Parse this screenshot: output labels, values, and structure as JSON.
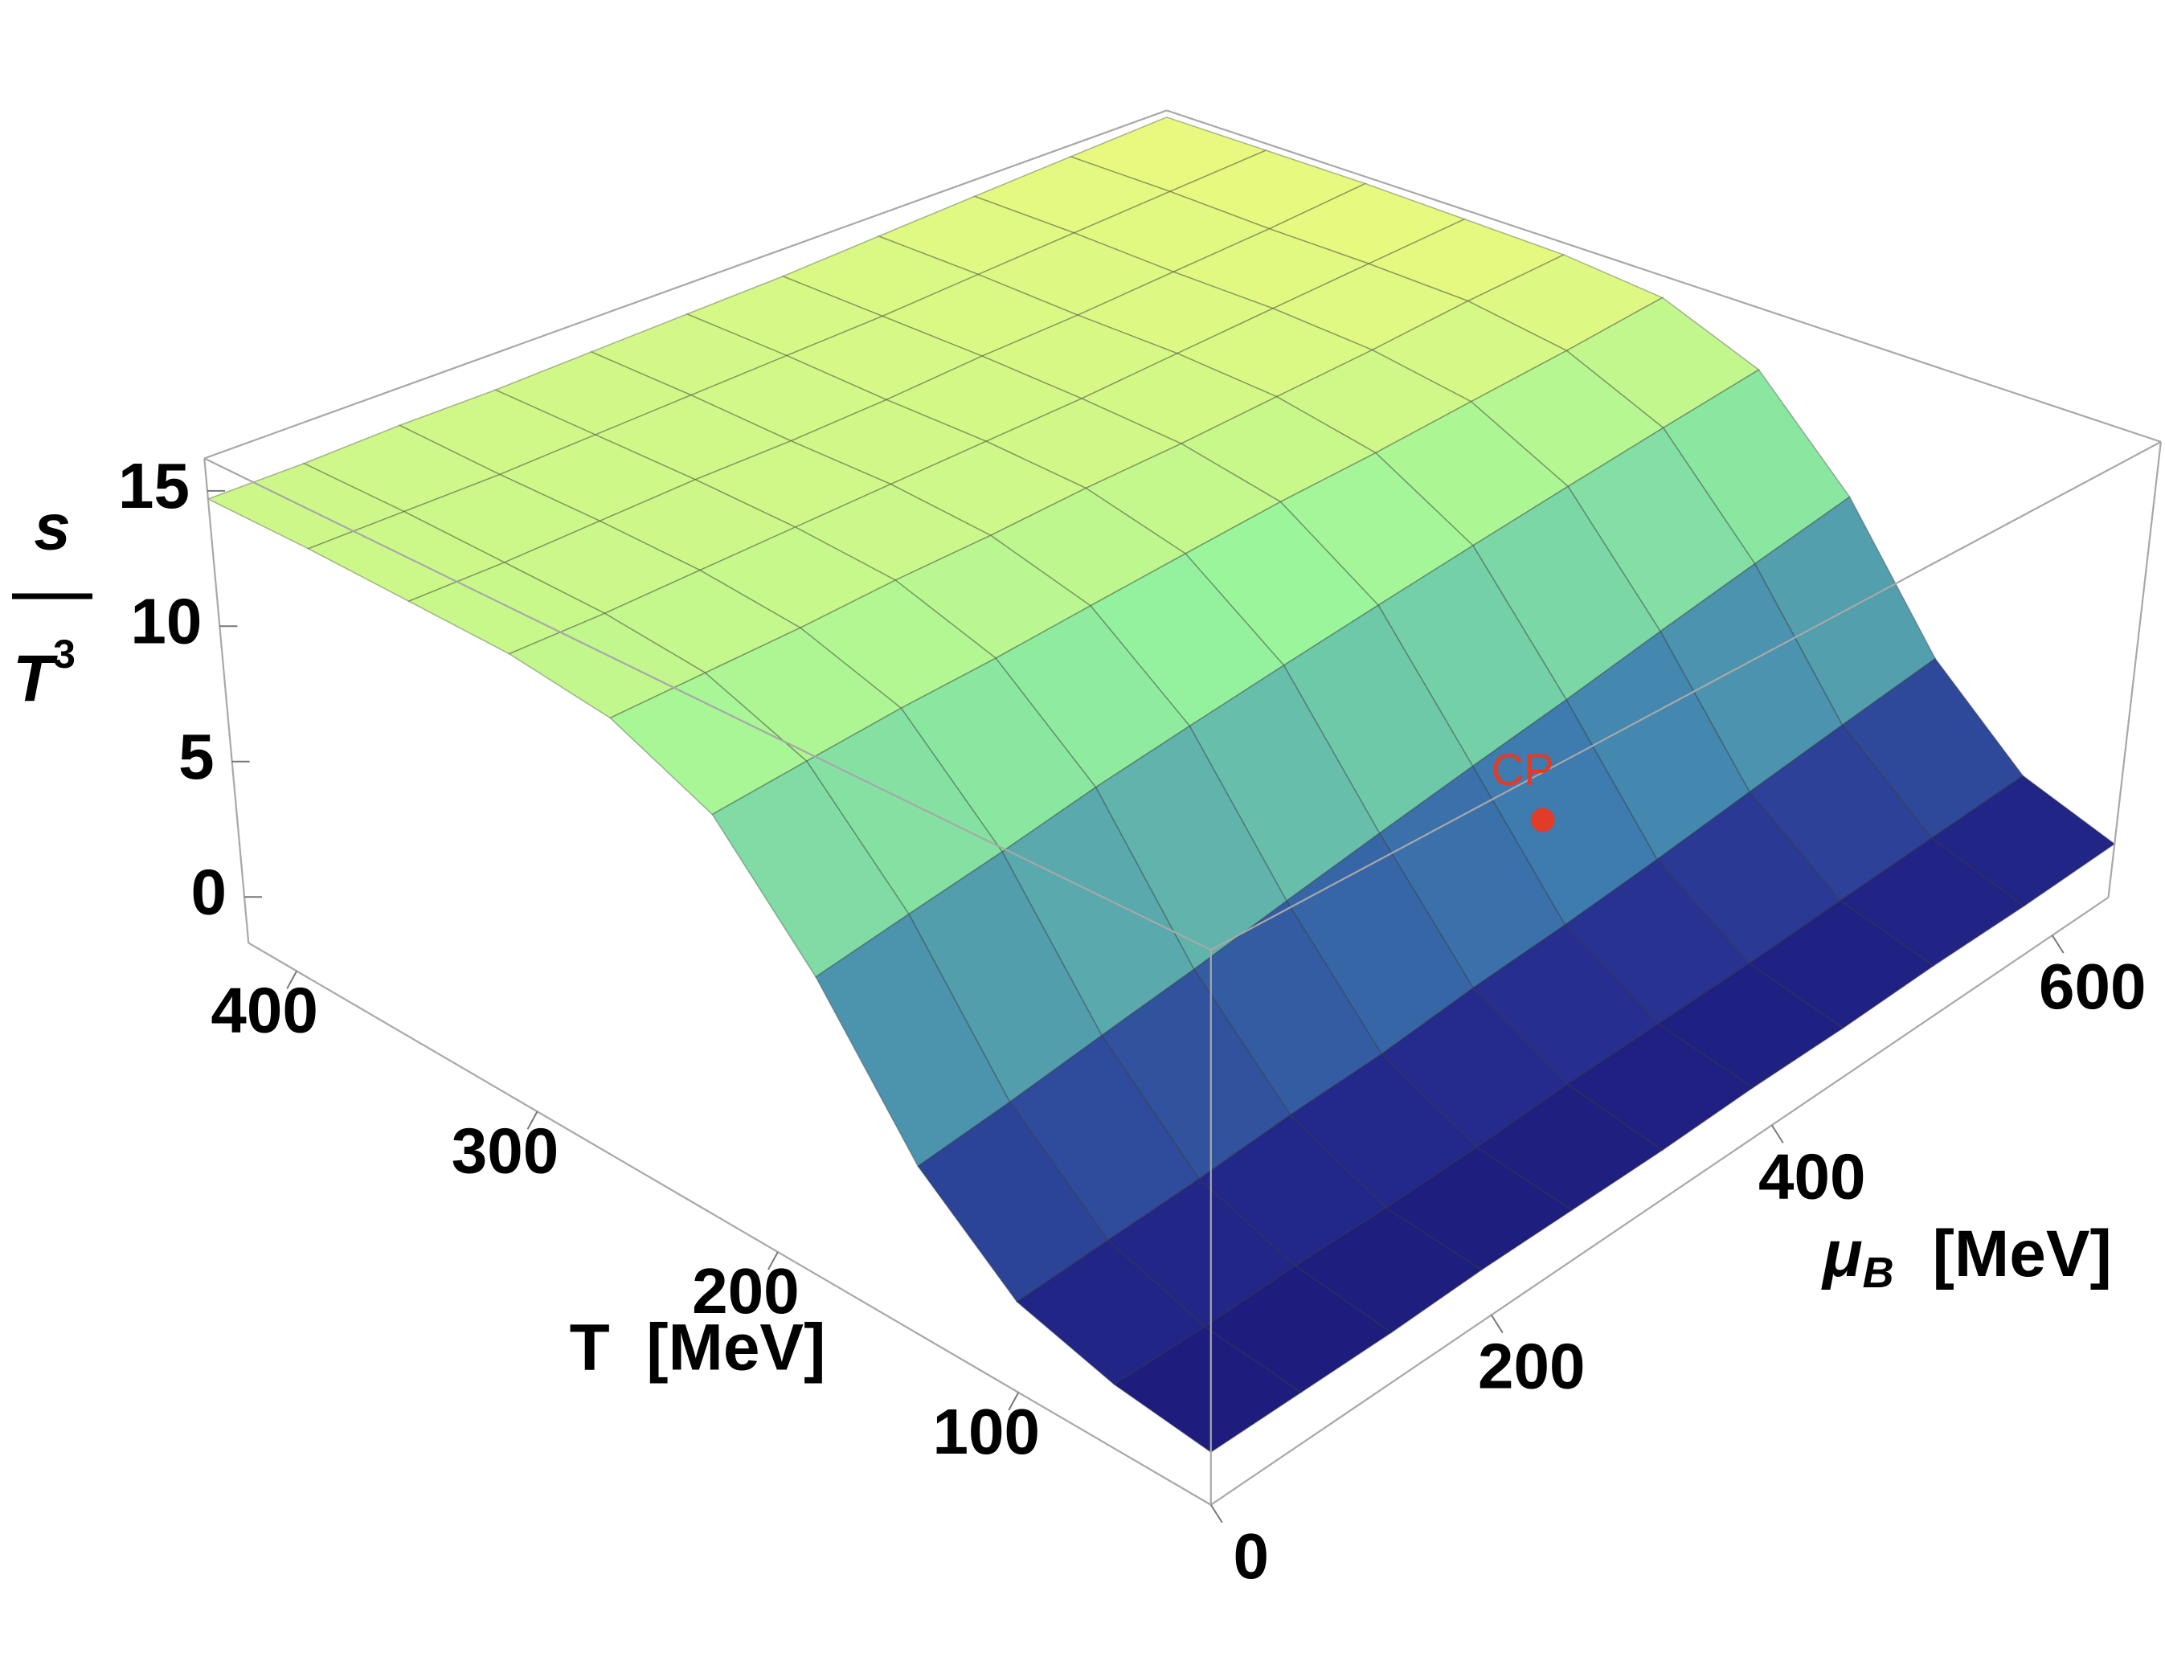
{
  "chart_data": {
    "type": "surface",
    "T": [
      20,
      60,
      100,
      140,
      180,
      220,
      260,
      300,
      340,
      380,
      420
    ],
    "mu_B": [
      0,
      64,
      128,
      192,
      256,
      320,
      384,
      448,
      512,
      576,
      640
    ],
    "values": [
      [
        0.0,
        0.0,
        0.0,
        0.1,
        0.1,
        0.1,
        0.2,
        0.2,
        0.3,
        0.3,
        0.4
      ],
      [
        0.4,
        0.4,
        0.5,
        0.5,
        0.6,
        0.8,
        0.9,
        1.0,
        1.2,
        1.4,
        1.6
      ],
      [
        1.3,
        1.5,
        1.7,
        2.0,
        2.2,
        2.6,
        2.9,
        3.3,
        3.8,
        4.3,
        4.8
      ],
      [
        4.0,
        4.4,
        4.9,
        5.4,
        6.0,
        6.6,
        7.2,
        7.8,
        8.5,
        9.2,
        9.9
      ],
      [
        8.6,
        9.1,
        9.6,
        10.2,
        10.7,
        11.2,
        11.7,
        12.2,
        12.7,
        13.2,
        13.7
      ],
      [
        12.4,
        12.7,
        13.0,
        13.2,
        13.5,
        13.8,
        14.1,
        14.3,
        14.6,
        14.9,
        15.3
      ],
      [
        14.0,
        14.1,
        14.2,
        14.4,
        14.5,
        14.7,
        14.8,
        15.0,
        15.2,
        15.5,
        15.7
      ],
      [
        14.5,
        14.5,
        14.6,
        14.7,
        14.8,
        14.9,
        15.0,
        15.2,
        15.4,
        15.6,
        15.8
      ],
      [
        14.6,
        14.6,
        14.7,
        14.8,
        14.8,
        14.9,
        15.1,
        15.2,
        15.4,
        15.6,
        15.9
      ],
      [
        14.7,
        14.7,
        14.7,
        14.8,
        14.9,
        15.0,
        15.1,
        15.3,
        15.5,
        15.7,
        15.9
      ],
      [
        14.7,
        14.7,
        14.8,
        14.8,
        14.9,
        15.0,
        15.1,
        15.3,
        15.5,
        15.7,
        15.9
      ]
    ],
    "tlim": [
      20,
      420
    ],
    "mulim": [
      0,
      640
    ],
    "zlim": [
      -1.7,
      16.2
    ],
    "tticks": [
      100,
      200,
      300,
      400
    ],
    "muticks": [
      0,
      200,
      400,
      600
    ],
    "zticks": [
      0,
      5,
      10,
      15
    ],
    "t_axis_label": "T  [MeV]",
    "mu_axis_label": {
      "symbol": "μ",
      "subscript": "B",
      "unit": "[MeV]"
    },
    "z_axis_label": {
      "numerator": "s",
      "denominator": "T",
      "superscript": "3"
    },
    "critical_point": {
      "label": "CP",
      "T": 120,
      "mu_B": 400,
      "value": 5.5,
      "color": "#e03c28"
    },
    "colormap": [
      "#14096a",
      "#262f90",
      "#3f7fb0",
      "#6cc7aa",
      "#98f59c",
      "#f3fa7b"
    ],
    "mesh_color": "#333333",
    "box_color": "#a8a8a8"
  }
}
